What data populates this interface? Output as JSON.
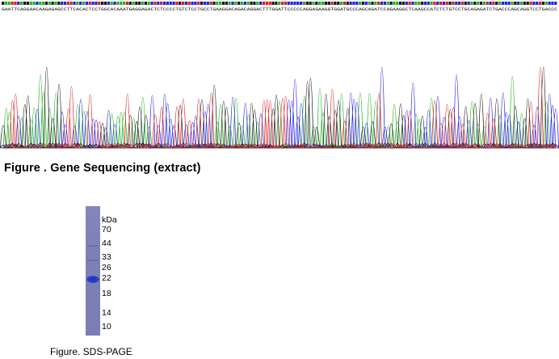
{
  "sequencing": {
    "sequence_text": "GAATTCAGGAACAAGAGAGCCTTCACACTCCTGGCACAAATGAGGAGACTCTCCCCTGTCTCCTGCCTGAAGGACAGACAGGACTTTGGATTCCCCCAGGAGAAGGTGGATGCCCAGCAGATCCAGAAGGCTCAAGCCATCTCTGTCCTGCAGAGATCTGACCCAGCAGGTCCTGACCC",
    "trace_colors": {
      "A": "#22b422",
      "C": "#2222e6",
      "G": "#1a1a1a",
      "T": "#e02020"
    },
    "caption": "Figure . Gene Sequencing (extract)"
  },
  "gel": {
    "unit_label": "kDa",
    "markers": [
      "70",
      "44",
      "33",
      "26",
      "22",
      "18",
      "14",
      "10"
    ],
    "band_color": "#1d2bd0",
    "caption": "Figure. SDS-PAGE"
  }
}
